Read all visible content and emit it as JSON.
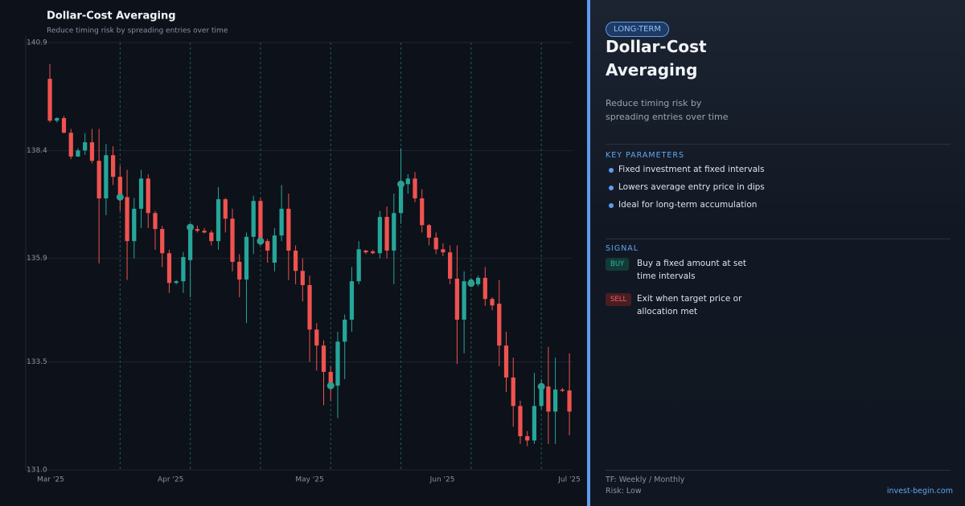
{
  "chart_data": {
    "type": "candlestick",
    "title": "Dollar-Cost Averaging",
    "subtitle": "Reduce timing risk by spreading entries over time",
    "up_color": "#26a69a",
    "down_color": "#ef5350",
    "marker_color": "#2e9e8f",
    "open": [
      140.06,
      139.09,
      139.15,
      138.81,
      138.26,
      138.4,
      138.59,
      138.16,
      137.29,
      138.29,
      137.79,
      137.32,
      136.3,
      137.05,
      137.75,
      136.95,
      136.58,
      136.02,
      135.33,
      135.37,
      135.86,
      136.58,
      136.54,
      136.5,
      136.3,
      137.27,
      136.82,
      135.82,
      135.41,
      136.4,
      137.23,
      136.3,
      135.8,
      136.43,
      137.05,
      136.08,
      135.61,
      135.28,
      134.25,
      133.88,
      133.27,
      132.95,
      133.97,
      134.48,
      135.37,
      136.08,
      136.06,
      136.02,
      136.86,
      136.08,
      136.95,
      137.62,
      137.75,
      137.29,
      136.67,
      136.38,
      136.11,
      136.04,
      135.43,
      134.48,
      135.32,
      135.3,
      135.45,
      134.96,
      134.85,
      133.88,
      133.14,
      132.48,
      131.78,
      131.68,
      132.48,
      132.93,
      132.35,
      132.86,
      132.84
    ],
    "high": [
      140.4,
      139.17,
      139.2,
      138.9,
      138.45,
      138.8,
      138.9,
      138.9,
      138.55,
      138.5,
      138.05,
      137.95,
      137.3,
      137.95,
      137.85,
      137.0,
      136.65,
      136.1,
      135.4,
      136.05,
      136.7,
      136.66,
      136.6,
      136.55,
      137.55,
      137.3,
      137.05,
      136.0,
      136.5,
      137.35,
      137.3,
      136.35,
      136.6,
      137.6,
      137.4,
      136.2,
      135.9,
      135.5,
      134.4,
      134.0,
      133.4,
      134.2,
      134.6,
      135.7,
      136.3,
      136.1,
      136.1,
      137.0,
      137.1,
      137.4,
      138.45,
      137.85,
      137.9,
      137.5,
      136.7,
      136.5,
      136.25,
      136.2,
      136.2,
      135.6,
      135.45,
      135.5,
      135.7,
      135.0,
      135.4,
      134.2,
      133.6,
      132.6,
      131.9,
      133.25,
      133.1,
      133.85,
      133.6,
      132.9,
      133.7
    ],
    "low": [
      139.05,
      139.05,
      138.8,
      138.2,
      138.25,
      138.3,
      138.1,
      135.78,
      136.9,
      137.6,
      137.0,
      135.4,
      135.9,
      136.6,
      136.6,
      136.1,
      135.7,
      135.1,
      135.3,
      135.1,
      135.0,
      136.5,
      136.48,
      136.2,
      136.1,
      136.5,
      135.6,
      135.0,
      134.4,
      136.0,
      136.2,
      135.8,
      135.6,
      136.3,
      135.4,
      135.3,
      134.9,
      133.5,
      133.3,
      132.5,
      132.6,
      132.2,
      133.1,
      134.2,
      135.3,
      136.0,
      136.0,
      135.9,
      135.9,
      135.3,
      136.7,
      137.4,
      137.2,
      136.5,
      136.2,
      136.0,
      135.95,
      135.3,
      133.45,
      133.7,
      135.3,
      135.25,
      134.8,
      134.7,
      133.4,
      132.8,
      132.0,
      131.6,
      131.55,
      131.6,
      132.4,
      131.6,
      131.6,
      132.8,
      131.8
    ],
    "close": [
      139.09,
      139.15,
      138.81,
      138.26,
      138.4,
      138.59,
      138.16,
      137.29,
      138.29,
      137.79,
      137.32,
      136.3,
      137.05,
      137.75,
      136.95,
      136.58,
      136.02,
      135.33,
      135.37,
      135.93,
      136.62,
      136.54,
      136.5,
      136.3,
      137.27,
      136.82,
      135.82,
      135.41,
      136.4,
      137.23,
      136.3,
      136.08,
      136.43,
      137.05,
      136.08,
      135.61,
      135.28,
      134.25,
      133.88,
      133.27,
      132.95,
      133.97,
      134.48,
      135.37,
      136.11,
      136.04,
      136.02,
      136.86,
      136.08,
      136.95,
      137.62,
      137.75,
      137.29,
      136.67,
      136.38,
      136.11,
      136.04,
      135.43,
      134.48,
      135.37,
      135.41,
      135.45,
      134.96,
      134.81,
      133.88,
      133.14,
      132.48,
      131.78,
      131.68,
      132.48,
      132.93,
      132.35,
      132.86,
      132.84,
      132.35
    ],
    "markers": {
      "x": [
        10,
        20,
        30,
        40,
        50,
        60,
        70
      ],
      "values": [
        137.32,
        136.62,
        136.3,
        132.95,
        137.62,
        135.32,
        132.93
      ]
    },
    "xlim": [
      -3.44,
      74.45
    ],
    "xticks": [
      {
        "value": 0.1,
        "label": "Mar '25"
      },
      {
        "value": 17.2,
        "label": "Apr '25"
      },
      {
        "value": 37,
        "label": "May '25"
      },
      {
        "value": 55.9,
        "label": "Jun '25"
      },
      {
        "value": 74,
        "label": "Jul '25"
      }
    ],
    "ylim": [
      131.0,
      140.9
    ],
    "yticks": [
      {
        "value": 131.0,
        "label": "131.0"
      },
      133.5,
      135.9,
      138.4,
      140.9
    ],
    "grid": true
  },
  "panel": {
    "badge": "LONG-TERM",
    "title": "Dollar-Cost Averaging",
    "description": "Reduce timing risk by spreading entries over time",
    "parameters_heading": "KEY PARAMETERS",
    "parameters": [
      "Fixed investment at fixed intervals",
      "Lowers average entry price in dips",
      "Ideal for long-term accumulation"
    ],
    "signal_heading": "SIGNAL",
    "signals": [
      {
        "tag": "BUY",
        "text": "Buy a fixed amount at set time intervals"
      },
      {
        "tag": "SELL",
        "text": "Exit when target price or allocation met"
      }
    ],
    "timeframe": "TF: Weekly / Monthly",
    "risk": "Risk: Low",
    "site": "invest-begin.com"
  }
}
